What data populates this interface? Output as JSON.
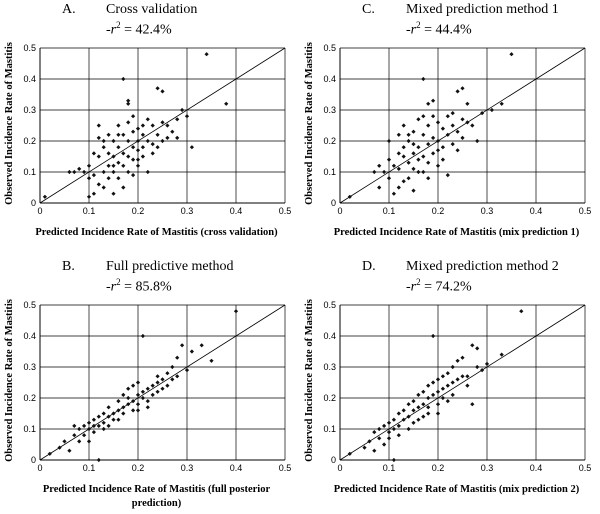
{
  "chart_data": [
    {
      "type": "scatter",
      "panel": "A.",
      "title": "Cross validation",
      "r2_prefix": "-r",
      "r2_value": "= 42.4%",
      "xlabel": "Predicted Incidence Rate of Mastitis (cross validation)",
      "ylabel": "Observed Incidence Rate of Mastitis",
      "xlim": [
        0,
        0.5
      ],
      "ylim": [
        0,
        0.5
      ],
      "xticks": [
        "0",
        "0.1",
        "0.2",
        "0.3",
        "0.4",
        "0.5"
      ],
      "yticks": [
        "0",
        "0.1",
        "0.2",
        "0.3",
        "0.4",
        "0.5"
      ],
      "grid": true,
      "reference_line": "y = x",
      "points": [
        [
          0.01,
          0.02
        ],
        [
          0.06,
          0.1
        ],
        [
          0.07,
          0.1
        ],
        [
          0.08,
          0.11
        ],
        [
          0.09,
          0.1
        ],
        [
          0.1,
          0.12
        ],
        [
          0.1,
          0.02
        ],
        [
          0.11,
          0.09
        ],
        [
          0.11,
          0.03
        ],
        [
          0.12,
          0.06
        ],
        [
          0.12,
          0.15
        ],
        [
          0.12,
          0.21
        ],
        [
          0.12,
          0.25
        ],
        [
          0.13,
          0.18
        ],
        [
          0.13,
          0.1
        ],
        [
          0.13,
          0.05
        ],
        [
          0.14,
          0.22
        ],
        [
          0.14,
          0.12
        ],
        [
          0.14,
          0.08
        ],
        [
          0.15,
          0.2
        ],
        [
          0.15,
          0.15
        ],
        [
          0.15,
          0.1
        ],
        [
          0.15,
          0.03
        ],
        [
          0.16,
          0.25
        ],
        [
          0.16,
          0.18
        ],
        [
          0.16,
          0.13
        ],
        [
          0.16,
          0.08
        ],
        [
          0.17,
          0.4
        ],
        [
          0.17,
          0.22
        ],
        [
          0.17,
          0.16
        ],
        [
          0.17,
          0.12
        ],
        [
          0.17,
          0.05
        ],
        [
          0.18,
          0.32
        ],
        [
          0.18,
          0.26
        ],
        [
          0.18,
          0.2
        ],
        [
          0.18,
          0.15
        ],
        [
          0.18,
          0.1
        ],
        [
          0.19,
          0.28
        ],
        [
          0.19,
          0.18
        ],
        [
          0.19,
          0.14
        ],
        [
          0.19,
          0.09
        ],
        [
          0.2,
          0.24
        ],
        [
          0.2,
          0.2
        ],
        [
          0.2,
          0.17
        ],
        [
          0.2,
          0.12
        ],
        [
          0.21,
          0.22
        ],
        [
          0.21,
          0.18
        ],
        [
          0.21,
          0.15
        ],
        [
          0.22,
          0.27
        ],
        [
          0.22,
          0.2
        ],
        [
          0.22,
          0.1
        ],
        [
          0.23,
          0.25
        ],
        [
          0.23,
          0.19
        ],
        [
          0.24,
          0.37
        ],
        [
          0.24,
          0.22
        ],
        [
          0.25,
          0.36
        ],
        [
          0.25,
          0.26
        ],
        [
          0.25,
          0.2
        ],
        [
          0.26,
          0.25
        ],
        [
          0.27,
          0.23
        ],
        [
          0.28,
          0.27
        ],
        [
          0.28,
          0.21
        ],
        [
          0.29,
          0.3
        ],
        [
          0.3,
          0.28
        ],
        [
          0.31,
          0.18
        ],
        [
          0.34,
          0.48
        ],
        [
          0.38,
          0.32
        ],
        [
          0.13,
          0.2
        ],
        [
          0.14,
          0.16
        ],
        [
          0.16,
          0.22
        ],
        [
          0.18,
          0.33
        ],
        [
          0.2,
          0.14
        ],
        [
          0.21,
          0.25
        ],
        [
          0.23,
          0.16
        ],
        [
          0.26,
          0.21
        ],
        [
          0.11,
          0.16
        ],
        [
          0.1,
          0.08
        ],
        [
          0.24,
          0.18
        ],
        [
          0.15,
          0.12
        ],
        [
          0.19,
          0.23
        ]
      ]
    },
    {
      "type": "scatter",
      "panel": "C.",
      "title": "Mixed prediction method 1",
      "r2_prefix": "-r",
      "r2_value": "= 44.4%",
      "xlabel": "Predicted Incidence Rate of Mastitis (mix prediction 1)",
      "ylabel": "Observed Incidence Rate of Mastitis",
      "xlim": [
        0,
        0.5
      ],
      "ylim": [
        0,
        0.5
      ],
      "xticks": [
        "0",
        "0.1",
        "0.2",
        "0.3",
        "0.4",
        "0.5"
      ],
      "yticks": [
        "0",
        "0.1",
        "0.2",
        "0.3",
        "0.4",
        "0.5"
      ],
      "grid": true,
      "reference_line": "y = x",
      "points": [
        [
          0.02,
          0.02
        ],
        [
          0.07,
          0.1
        ],
        [
          0.08,
          0.12
        ],
        [
          0.08,
          0.05
        ],
        [
          0.09,
          0.1
        ],
        [
          0.1,
          0.2
        ],
        [
          0.1,
          0.14
        ],
        [
          0.1,
          0.08
        ],
        [
          0.11,
          0.03
        ],
        [
          0.12,
          0.22
        ],
        [
          0.12,
          0.16
        ],
        [
          0.12,
          0.11
        ],
        [
          0.13,
          0.25
        ],
        [
          0.13,
          0.18
        ],
        [
          0.13,
          0.07
        ],
        [
          0.14,
          0.2
        ],
        [
          0.14,
          0.13
        ],
        [
          0.14,
          0.08
        ],
        [
          0.15,
          0.23
        ],
        [
          0.15,
          0.16
        ],
        [
          0.15,
          0.11
        ],
        [
          0.15,
          0.04
        ],
        [
          0.16,
          0.27
        ],
        [
          0.16,
          0.18
        ],
        [
          0.16,
          0.14
        ],
        [
          0.17,
          0.4
        ],
        [
          0.17,
          0.22
        ],
        [
          0.17,
          0.15
        ],
        [
          0.17,
          0.1
        ],
        [
          0.18,
          0.32
        ],
        [
          0.18,
          0.25
        ],
        [
          0.18,
          0.19
        ],
        [
          0.18,
          0.13
        ],
        [
          0.19,
          0.28
        ],
        [
          0.19,
          0.21
        ],
        [
          0.19,
          0.16
        ],
        [
          0.2,
          0.26
        ],
        [
          0.2,
          0.2
        ],
        [
          0.2,
          0.12
        ],
        [
          0.21,
          0.24
        ],
        [
          0.21,
          0.18
        ],
        [
          0.22,
          0.28
        ],
        [
          0.22,
          0.22
        ],
        [
          0.22,
          0.09
        ],
        [
          0.23,
          0.25
        ],
        [
          0.23,
          0.19
        ],
        [
          0.24,
          0.36
        ],
        [
          0.24,
          0.23
        ],
        [
          0.25,
          0.37
        ],
        [
          0.25,
          0.27
        ],
        [
          0.25,
          0.21
        ],
        [
          0.26,
          0.26
        ],
        [
          0.27,
          0.25
        ],
        [
          0.28,
          0.2
        ],
        [
          0.29,
          0.29
        ],
        [
          0.31,
          0.3
        ],
        [
          0.33,
          0.32
        ],
        [
          0.35,
          0.48
        ],
        [
          0.11,
          0.12
        ],
        [
          0.13,
          0.15
        ],
        [
          0.16,
          0.1
        ],
        [
          0.19,
          0.33
        ],
        [
          0.21,
          0.14
        ],
        [
          0.24,
          0.17
        ],
        [
          0.2,
          0.17
        ],
        [
          0.14,
          0.22
        ],
        [
          0.17,
          0.28
        ],
        [
          0.23,
          0.29
        ],
        [
          0.12,
          0.05
        ],
        [
          0.18,
          0.08
        ],
        [
          0.26,
          0.32
        ],
        [
          0.15,
          0.19
        ]
      ]
    },
    {
      "type": "scatter",
      "panel": "B.",
      "title": "Full predictive method",
      "r2_prefix": "-r",
      "r2_value": "= 85.8%",
      "xlabel": "Predicted Incidence Rate of Mastitis (full posterior prediction)",
      "xlabel_lines": [
        "Predicted Incidence Rate of Mastitis (full posterior",
        "prediction)"
      ],
      "ylabel": "Observed Incidence Rate of Mastitis",
      "xlim": [
        0,
        0.5
      ],
      "ylim": [
        0,
        0.5
      ],
      "xticks": [
        "0",
        "0.1",
        "0.2",
        "0.3",
        "0.4",
        "0.5"
      ],
      "yticks": [
        "0",
        "0.1",
        "0.2",
        "0.3",
        "0.4",
        "0.5"
      ],
      "grid": true,
      "reference_line": "y = x",
      "points": [
        [
          0.02,
          0.02
        ],
        [
          0.04,
          0.04
        ],
        [
          0.05,
          0.06
        ],
        [
          0.06,
          0.03
        ],
        [
          0.07,
          0.08
        ],
        [
          0.08,
          0.1
        ],
        [
          0.08,
          0.06
        ],
        [
          0.09,
          0.11
        ],
        [
          0.09,
          0.08
        ],
        [
          0.1,
          0.1
        ],
        [
          0.1,
          0.12
        ],
        [
          0.11,
          0.09
        ],
        [
          0.11,
          0.13
        ],
        [
          0.12,
          0.11
        ],
        [
          0.12,
          0.14
        ],
        [
          0.12,
          0.0
        ],
        [
          0.13,
          0.12
        ],
        [
          0.13,
          0.15
        ],
        [
          0.14,
          0.14
        ],
        [
          0.14,
          0.17
        ],
        [
          0.15,
          0.15
        ],
        [
          0.15,
          0.13
        ],
        [
          0.16,
          0.16
        ],
        [
          0.16,
          0.19
        ],
        [
          0.17,
          0.17
        ],
        [
          0.17,
          0.15
        ],
        [
          0.18,
          0.2
        ],
        [
          0.18,
          0.18
        ],
        [
          0.18,
          0.23
        ],
        [
          0.19,
          0.19
        ],
        [
          0.19,
          0.16
        ],
        [
          0.2,
          0.21
        ],
        [
          0.2,
          0.25
        ],
        [
          0.2,
          0.18
        ],
        [
          0.21,
          0.4
        ],
        [
          0.21,
          0.22
        ],
        [
          0.21,
          0.2
        ],
        [
          0.22,
          0.23
        ],
        [
          0.22,
          0.19
        ],
        [
          0.23,
          0.24
        ],
        [
          0.23,
          0.21
        ],
        [
          0.24,
          0.25
        ],
        [
          0.24,
          0.27
        ],
        [
          0.25,
          0.26
        ],
        [
          0.25,
          0.23
        ],
        [
          0.26,
          0.28
        ],
        [
          0.27,
          0.26
        ],
        [
          0.27,
          0.3
        ],
        [
          0.28,
          0.33
        ],
        [
          0.29,
          0.37
        ],
        [
          0.3,
          0.29
        ],
        [
          0.31,
          0.35
        ],
        [
          0.33,
          0.37
        ],
        [
          0.35,
          0.32
        ],
        [
          0.4,
          0.48
        ],
        [
          0.07,
          0.11
        ],
        [
          0.1,
          0.06
        ],
        [
          0.14,
          0.11
        ],
        [
          0.17,
          0.21
        ],
        [
          0.19,
          0.24
        ],
        [
          0.22,
          0.17
        ],
        [
          0.24,
          0.22
        ],
        [
          0.26,
          0.24
        ],
        [
          0.13,
          0.1
        ],
        [
          0.16,
          0.13
        ],
        [
          0.28,
          0.27
        ],
        [
          0.11,
          0.11
        ],
        [
          0.2,
          0.16
        ]
      ]
    },
    {
      "type": "scatter",
      "panel": "D.",
      "title": "Mixed prediction method 2",
      "r2_prefix": "-r",
      "r2_value": "= 74.2%",
      "xlabel": "Predicted Incidence Rate of Mastitis (mix prediction 2)",
      "ylabel": "Observed Incidence Rate of Mastitis",
      "xlim": [
        0,
        0.5
      ],
      "ylim": [
        0,
        0.5
      ],
      "xticks": [
        "0",
        "0.1",
        "0.2",
        "0.3",
        "0.4",
        "0.5"
      ],
      "yticks": [
        "0",
        "0.1",
        "0.2",
        "0.3",
        "0.4",
        "0.5"
      ],
      "grid": true,
      "reference_line": "y = x",
      "points": [
        [
          0.02,
          0.02
        ],
        [
          0.05,
          0.04
        ],
        [
          0.06,
          0.06
        ],
        [
          0.07,
          0.09
        ],
        [
          0.07,
          0.03
        ],
        [
          0.08,
          0.1
        ],
        [
          0.08,
          0.07
        ],
        [
          0.09,
          0.11
        ],
        [
          0.09,
          0.05
        ],
        [
          0.1,
          0.12
        ],
        [
          0.1,
          0.09
        ],
        [
          0.11,
          0.13
        ],
        [
          0.11,
          0.1
        ],
        [
          0.11,
          0.0
        ],
        [
          0.12,
          0.15
        ],
        [
          0.12,
          0.11
        ],
        [
          0.13,
          0.16
        ],
        [
          0.13,
          0.13
        ],
        [
          0.14,
          0.18
        ],
        [
          0.14,
          0.14
        ],
        [
          0.15,
          0.19
        ],
        [
          0.15,
          0.16
        ],
        [
          0.15,
          0.12
        ],
        [
          0.16,
          0.21
        ],
        [
          0.16,
          0.17
        ],
        [
          0.17,
          0.22
        ],
        [
          0.17,
          0.18
        ],
        [
          0.17,
          0.14
        ],
        [
          0.18,
          0.24
        ],
        [
          0.18,
          0.2
        ],
        [
          0.18,
          0.15
        ],
        [
          0.19,
          0.4
        ],
        [
          0.19,
          0.25
        ],
        [
          0.19,
          0.21
        ],
        [
          0.2,
          0.26
        ],
        [
          0.2,
          0.22
        ],
        [
          0.2,
          0.18
        ],
        [
          0.21,
          0.27
        ],
        [
          0.21,
          0.23
        ],
        [
          0.22,
          0.28
        ],
        [
          0.22,
          0.24
        ],
        [
          0.22,
          0.19
        ],
        [
          0.23,
          0.3
        ],
        [
          0.23,
          0.25
        ],
        [
          0.24,
          0.32
        ],
        [
          0.24,
          0.26
        ],
        [
          0.25,
          0.33
        ],
        [
          0.25,
          0.27
        ],
        [
          0.26,
          0.24
        ],
        [
          0.27,
          0.37
        ],
        [
          0.28,
          0.36
        ],
        [
          0.28,
          0.3
        ],
        [
          0.29,
          0.29
        ],
        [
          0.3,
          0.31
        ],
        [
          0.33,
          0.34
        ],
        [
          0.37,
          0.48
        ],
        [
          0.12,
          0.08
        ],
        [
          0.14,
          0.1
        ],
        [
          0.16,
          0.13
        ],
        [
          0.18,
          0.17
        ],
        [
          0.2,
          0.15
        ],
        [
          0.21,
          0.2
        ],
        [
          0.23,
          0.21
        ],
        [
          0.26,
          0.27
        ],
        [
          0.1,
          0.07
        ],
        [
          0.27,
          0.18
        ]
      ]
    }
  ]
}
